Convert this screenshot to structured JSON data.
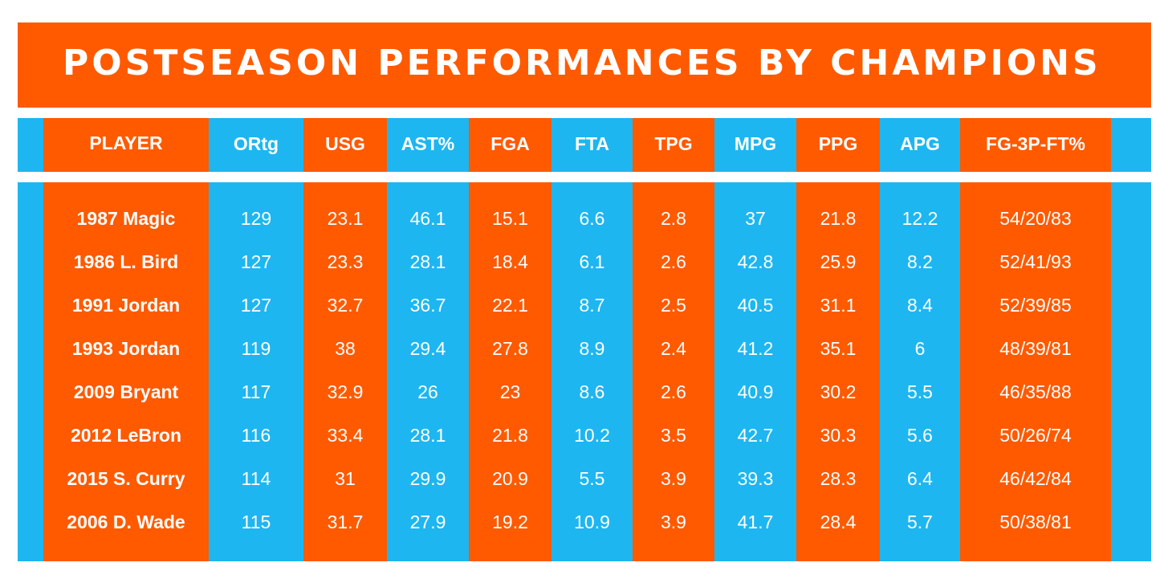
{
  "chart_data": {
    "type": "table",
    "title": "POSTSEASON PERFORMANCES BY CHAMPIONS",
    "columns": [
      "PLAYER",
      "ORtg",
      "USG",
      "AST%",
      "FGA",
      "FTA",
      "TPG",
      "MPG",
      "PPG",
      "APG",
      "FG-3P-FT%"
    ],
    "rows": [
      [
        "1987 Magic",
        "129",
        "23.1",
        "46.1",
        "15.1",
        "6.6",
        "2.8",
        "37",
        "21.8",
        "12.2",
        "54/20/83"
      ],
      [
        "1986 L. Bird",
        "127",
        "23.3",
        "28.1",
        "18.4",
        "6.1",
        "2.6",
        "42.8",
        "25.9",
        "8.2",
        "52/41/93"
      ],
      [
        "1991 Jordan",
        "127",
        "32.7",
        "36.7",
        "22.1",
        "8.7",
        "2.5",
        "40.5",
        "31.1",
        "8.4",
        "52/39/85"
      ],
      [
        "1993 Jordan",
        "119",
        "38",
        "29.4",
        "27.8",
        "8.9",
        "2.4",
        "41.2",
        "35.1",
        "6",
        "48/39/81"
      ],
      [
        "2009 Bryant",
        "117",
        "32.9",
        "26",
        "23",
        "8.6",
        "2.6",
        "40.9",
        "30.2",
        "5.5",
        "46/35/88"
      ],
      [
        "2012 LeBron",
        "116",
        "33.4",
        "28.1",
        "21.8",
        "10.2",
        "3.5",
        "42.7",
        "30.3",
        "5.6",
        "50/26/74"
      ],
      [
        "2015 S. Curry",
        "114",
        "31",
        "29.9",
        "20.9",
        "5.5",
        "3.9",
        "39.3",
        "28.3",
        "6.4",
        "46/42/84"
      ],
      [
        "2006 D. Wade",
        "115",
        "31.7",
        "27.9",
        "19.2",
        "10.9",
        "3.9",
        "41.7",
        "28.4",
        "5.7",
        "50/38/81"
      ]
    ],
    "colors": {
      "orange": "#ff5a00",
      "blue": "#1eb6f0",
      "text": "#ffffff"
    }
  }
}
